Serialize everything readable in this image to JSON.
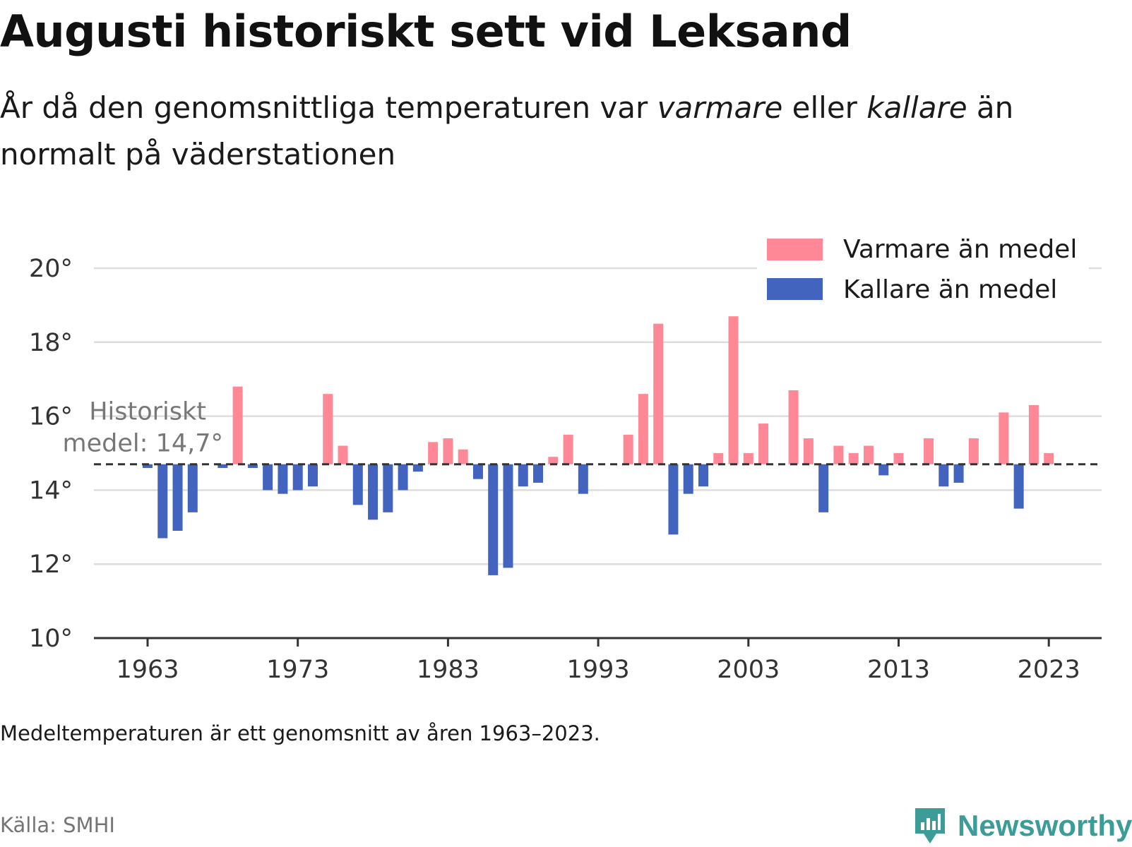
{
  "title": "Augusti historiskt sett vid Leksand",
  "subtitle": {
    "part1": "År då den genomsnittliga temperaturen var ",
    "warm_word": "varmare",
    "part2": " eller ",
    "cold_word": "kallare",
    "part3": " än normalt på väderstationen"
  },
  "footnote": "Medeltemperaturen är ett genomsnitt av åren 1963–2023.",
  "source": "Källa: SMHI",
  "brand": "Newsworthy",
  "colors": {
    "warm": "#ff8896",
    "cold": "#4263be",
    "grid": "#dddddd",
    "axis": "#333333",
    "mean_line": "#333333",
    "brand": "#3b9c98"
  },
  "chart_data": {
    "type": "bar",
    "ylim": [
      10,
      20
    ],
    "y_ticks": [
      10,
      12,
      14,
      16,
      18,
      20
    ],
    "y_tick_suffix": "°",
    "x_ticks": [
      1963,
      1973,
      1983,
      1993,
      2003,
      2013,
      2023
    ],
    "mean": 14.7,
    "mean_label_line1": "Historiskt",
    "mean_label_line2": "medel: 14,7°",
    "legend": {
      "position": "top-right",
      "warm_label": "Varmare än medel",
      "cold_label": "Kallare än medel"
    },
    "x": [
      1963,
      1964,
      1965,
      1966,
      1967,
      1968,
      1969,
      1970,
      1971,
      1972,
      1973,
      1974,
      1975,
      1976,
      1977,
      1978,
      1979,
      1980,
      1981,
      1982,
      1983,
      1984,
      1985,
      1986,
      1987,
      1988,
      1989,
      1990,
      1991,
      1992,
      1993,
      1994,
      1995,
      1996,
      1997,
      1998,
      1999,
      2000,
      2001,
      2002,
      2003,
      2004,
      2005,
      2006,
      2007,
      2008,
      2009,
      2010,
      2011,
      2012,
      2013,
      2014,
      2015,
      2016,
      2017,
      2018,
      2019,
      2020,
      2021,
      2022,
      2023
    ],
    "values": [
      14.6,
      12.7,
      12.9,
      13.4,
      null,
      14.6,
      16.8,
      14.6,
      14.0,
      13.9,
      14.0,
      14.1,
      16.6,
      15.2,
      13.6,
      13.2,
      13.4,
      14.0,
      14.5,
      15.3,
      15.4,
      15.1,
      14.3,
      11.7,
      11.9,
      14.1,
      14.2,
      14.9,
      15.5,
      13.9,
      null,
      null,
      15.5,
      16.6,
      18.5,
      12.8,
      13.9,
      14.1,
      15.0,
      18.7,
      15.0,
      15.8,
      null,
      16.7,
      15.4,
      13.4,
      15.2,
      15.0,
      15.2,
      14.4,
      15.0,
      null,
      15.4,
      14.1,
      14.2,
      15.4,
      null,
      16.1,
      13.5,
      16.3,
      15.0
    ]
  }
}
